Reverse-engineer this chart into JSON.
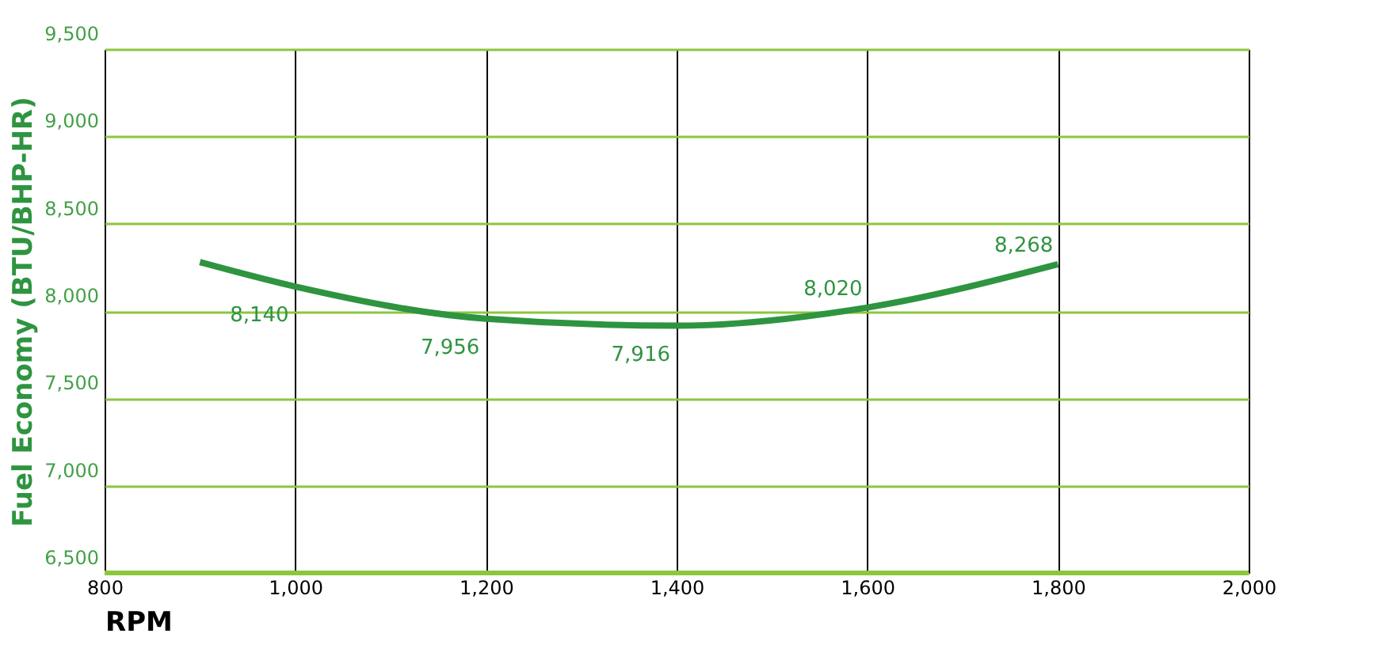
{
  "chart_data": {
    "type": "line",
    "xlabel": "RPM",
    "ylabel": "Fuel Economy (BTU/BHP-HR)",
    "x": [
      900,
      1000,
      1200,
      1400,
      1600,
      1800
    ],
    "series": [
      {
        "color": "#2e9440",
        "values": [
          8280,
          8140,
          7956,
          7916,
          8020,
          8268
        ],
        "value_labels": [
          null,
          "8,140",
          "7,956",
          "7,916",
          "8,020",
          "8,268"
        ]
      }
    ],
    "xlim": [
      800,
      2000
    ],
    "xticks": [
      {
        "value": 800,
        "label": "800"
      },
      {
        "value": 1000,
        "label": "1,000"
      },
      {
        "value": 1200,
        "label": "1,200"
      },
      {
        "value": 1400,
        "label": "1,400"
      },
      {
        "value": 1600,
        "label": "1,600"
      },
      {
        "value": 1800,
        "label": "1,800"
      },
      {
        "value": 2000,
        "label": "2,000"
      }
    ],
    "ylim": [
      6500,
      9500
    ],
    "yticks": [
      {
        "value": 6500,
        "label": "6,500"
      },
      {
        "value": 7000,
        "label": "7,000"
      },
      {
        "value": 7500,
        "label": "7,500"
      },
      {
        "value": 8000,
        "label": "8,000"
      },
      {
        "value": 8500,
        "label": "8,500"
      },
      {
        "value": 9000,
        "label": "9,000"
      },
      {
        "value": 9500,
        "label": "9,500"
      }
    ],
    "grid": true,
    "marker": "none",
    "line_style": "solid"
  }
}
